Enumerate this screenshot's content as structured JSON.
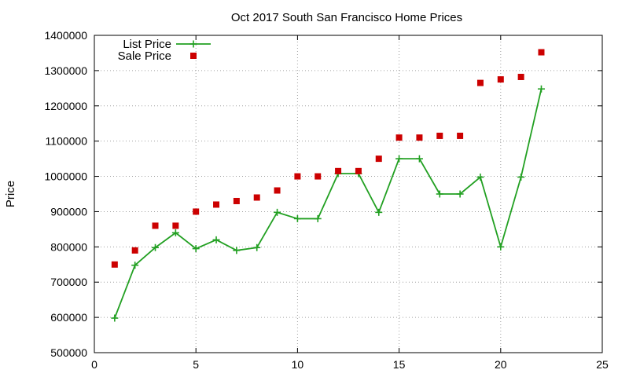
{
  "chart_data": {
    "type": "line",
    "title": "Oct 2017 South San Francisco Home Prices",
    "xlabel": "",
    "ylabel": "Price",
    "xlim": [
      0,
      25
    ],
    "ylim": [
      500000,
      1400000
    ],
    "xticks": [
      0,
      5,
      10,
      15,
      20,
      25
    ],
    "yticks": [
      500000,
      600000,
      700000,
      800000,
      900000,
      1000000,
      1100000,
      1200000,
      1300000,
      1400000
    ],
    "grid": true,
    "legend_position": "top-left",
    "series": [
      {
        "name": "List Price",
        "style": "line+cross",
        "color": "#22a022",
        "x": [
          1,
          2,
          3,
          4,
          5,
          6,
          7,
          8,
          9,
          10,
          11,
          12,
          13,
          14,
          15,
          16,
          17,
          18,
          19,
          20,
          21,
          22
        ],
        "y": [
          598000,
          748000,
          798000,
          840000,
          795000,
          820000,
          790000,
          798000,
          898000,
          880000,
          880000,
          1008000,
          1008000,
          898000,
          1050000,
          1050000,
          950000,
          950000,
          998000,
          800000,
          998000,
          1248000
        ]
      },
      {
        "name": "Sale Price",
        "style": "square",
        "color": "#cc0000",
        "x": [
          1,
          2,
          3,
          4,
          5,
          6,
          7,
          8,
          9,
          10,
          11,
          12,
          13,
          14,
          15,
          16,
          17,
          18,
          19,
          20,
          21,
          22
        ],
        "y": [
          750000,
          790000,
          860000,
          860000,
          900000,
          920000,
          930000,
          940000,
          960000,
          1000000,
          1000000,
          1015000,
          1015000,
          1050000,
          1110000,
          1110000,
          1115000,
          1115000,
          1265000,
          1275000,
          1282000,
          1352000
        ]
      }
    ]
  }
}
